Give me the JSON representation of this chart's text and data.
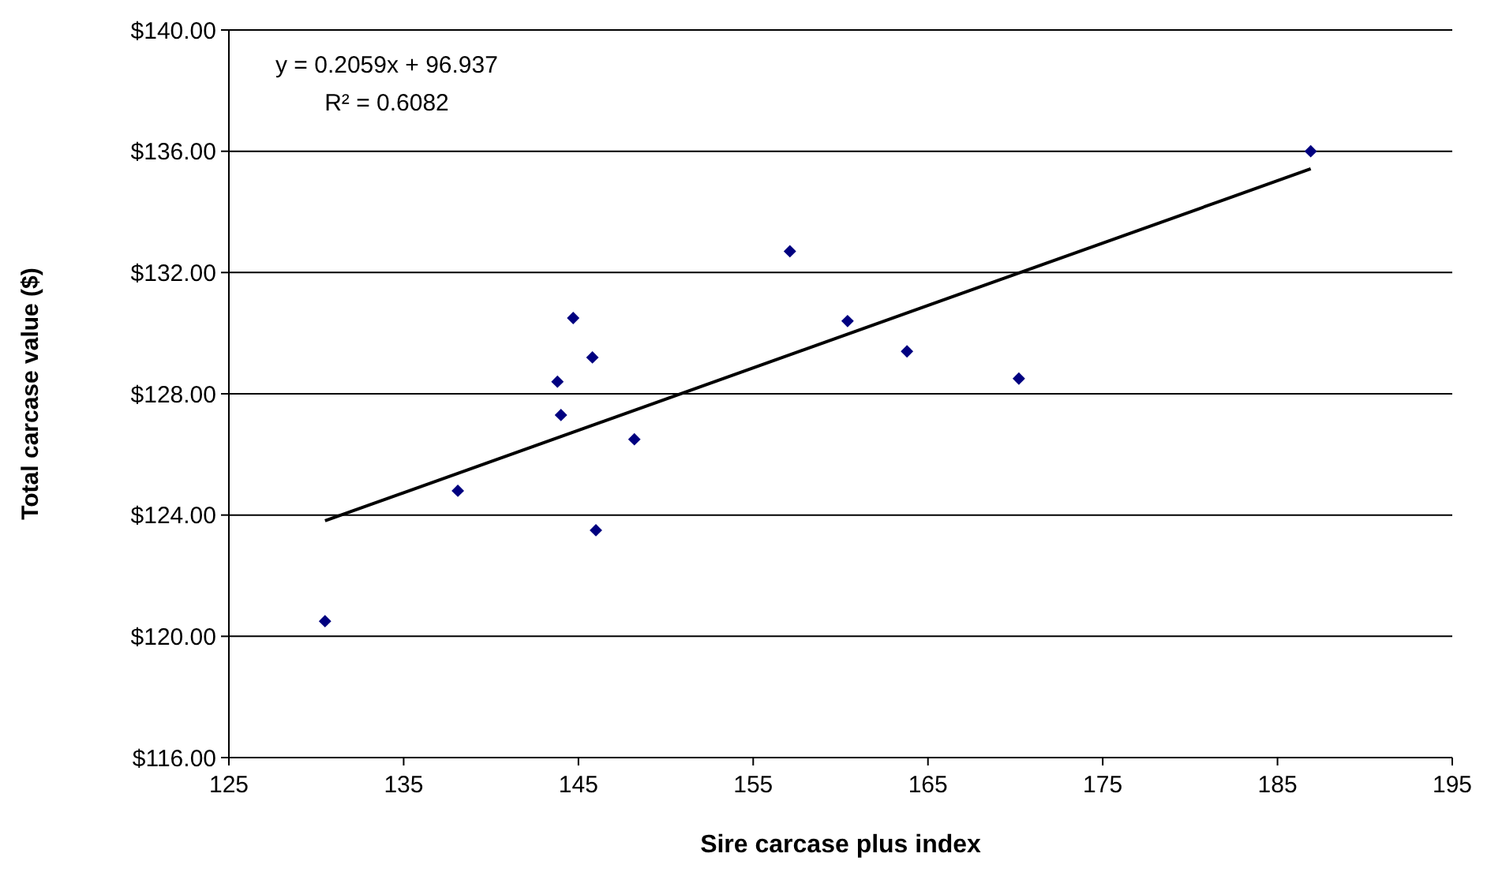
{
  "chart_data": {
    "type": "scatter",
    "xlabel": "Sire carcase plus index",
    "ylabel": "Total carcase value ($)",
    "xlim": [
      125,
      195
    ],
    "xticks": [
      125,
      135,
      145,
      155,
      165,
      175,
      185,
      195
    ],
    "ylim": [
      116,
      140
    ],
    "yticks": [
      {
        "value": 116,
        "label": "$116.00"
      },
      {
        "value": 120,
        "label": "$120.00"
      },
      {
        "value": 124,
        "label": "$124.00"
      },
      {
        "value": 128,
        "label": "$128.00"
      },
      {
        "value": 132,
        "label": "$132.00"
      },
      {
        "value": 136,
        "label": "$136.00"
      },
      {
        "value": 140,
        "label": "$140.00"
      }
    ],
    "grid": "y",
    "annotations": [
      "y = 0.2059x + 96.937",
      "R² = 0.6082"
    ],
    "series": [
      {
        "marker": "diamond",
        "color": "#000080",
        "x": [
          130.5,
          138.1,
          143.8,
          144.0,
          144.7,
          145.8,
          146.0,
          148.2,
          157.1,
          160.4,
          163.8,
          170.2,
          186.9
        ],
        "values": [
          120.5,
          124.8,
          128.4,
          127.3,
          130.5,
          129.2,
          123.5,
          126.5,
          132.7,
          130.4,
          129.4,
          128.5,
          136.0
        ]
      },
      {
        "type": "line",
        "color": "#000000",
        "x": [
          130.5,
          186.9
        ],
        "values": [
          123.81,
          135.42
        ]
      }
    ]
  }
}
